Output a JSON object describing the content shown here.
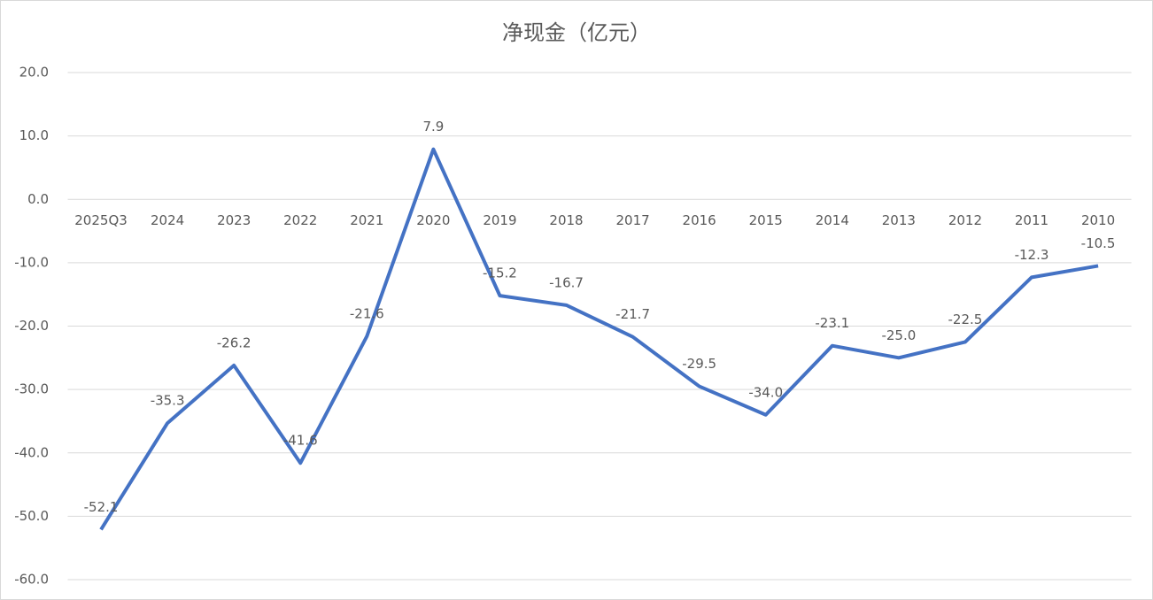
{
  "chart_data": {
    "type": "line",
    "title": "净现金（亿元）",
    "categories": [
      "2025Q3",
      "2024",
      "2023",
      "2022",
      "2021",
      "2020",
      "2019",
      "2018",
      "2017",
      "2016",
      "2015",
      "2014",
      "2013",
      "2012",
      "2011",
      "2010"
    ],
    "series": [
      {
        "name": "净现金",
        "color": "#4472c4",
        "values": [
          -52.1,
          -35.3,
          -26.2,
          -41.6,
          -21.6,
          7.9,
          -15.2,
          -16.7,
          -21.7,
          -29.5,
          -34.0,
          -23.1,
          -25.0,
          -22.5,
          -12.3,
          -10.5
        ],
        "value_labels": [
          "-52.1",
          "-35.3",
          "-26.2",
          "-41.6",
          "-21.6",
          "7.9",
          "-15.2",
          "-16.7",
          "-21.7",
          "-29.5",
          "-34.0",
          "-23.1",
          "-25.0",
          "-22.5",
          "-12.3",
          "-10.5"
        ]
      }
    ],
    "ylim": [
      -60,
      20
    ],
    "yticks": [
      {
        "value": -60,
        "label": "-60.0"
      },
      {
        "value": -50,
        "label": "-50.0"
      },
      {
        "value": -40,
        "label": "-40.0"
      },
      {
        "value": -30,
        "label": "-30.0"
      },
      {
        "value": -20,
        "label": "-20.0"
      },
      {
        "value": -10,
        "label": "-10.0"
      },
      {
        "value": 0,
        "label": "0.0"
      },
      {
        "value": 10,
        "label": "10.0"
      },
      {
        "value": 20,
        "label": "20.0"
      }
    ],
    "grid": true
  }
}
